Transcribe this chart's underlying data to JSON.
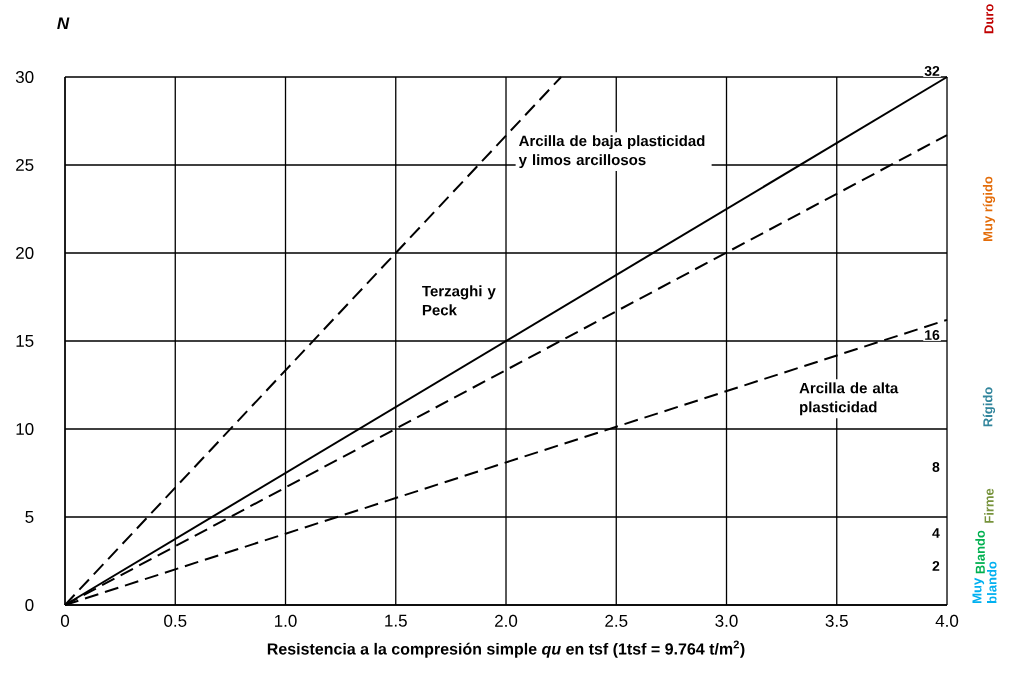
{
  "chart_data": {
    "type": "line",
    "ylabel": "N",
    "xlabel": "Resistencia a la compresión simple *qu* en tsf (1tsf = 9.764 t/m$^{2}$)",
    "xlim": [
      0,
      4
    ],
    "ylim": [
      0,
      30
    ],
    "xticks": [
      0,
      0.5,
      {
        "value": 1,
        "label": "1.0"
      },
      1.5,
      {
        "value": 2,
        "label": "2.0"
      },
      2.5,
      {
        "value": 3,
        "label": "3.0"
      },
      3.5,
      {
        "value": 4,
        "label": "4.0"
      }
    ],
    "yticks": [
      0,
      5,
      10,
      15,
      20,
      25,
      30
    ],
    "y2lim": [
      0,
      32
    ],
    "y2ticks": [
      2,
      4,
      8,
      16,
      32
    ],
    "grid": true,
    "legend": false,
    "series": [
      {
        "name": "Arcilla de baja plasticidad y limos arcillosos",
        "color": "#000000",
        "line_style": "dashed",
        "x": [
          0,
          2.25
        ],
        "values": [
          0,
          30
        ]
      },
      {
        "name": "Terzaghi y Peck",
        "color": "#000000",
        "line_style": "solid",
        "x": [
          0,
          4
        ],
        "values": [
          0,
          30
        ]
      },
      {
        "color": "#000000",
        "line_style": "dashed",
        "x": [
          0,
          4
        ],
        "values": [
          0,
          26.7
        ]
      },
      {
        "name": "Arcilla de alta plasticidad",
        "color": "#000000",
        "line_style": "dashed",
        "x": [
          0,
          4
        ],
        "values": [
          0,
          16.2
        ]
      }
    ],
    "annotations": [
      "Duro",
      "Muy rígido",
      "Rígido",
      "Firme",
      "Blando",
      "Muy blando"
    ]
  }
}
